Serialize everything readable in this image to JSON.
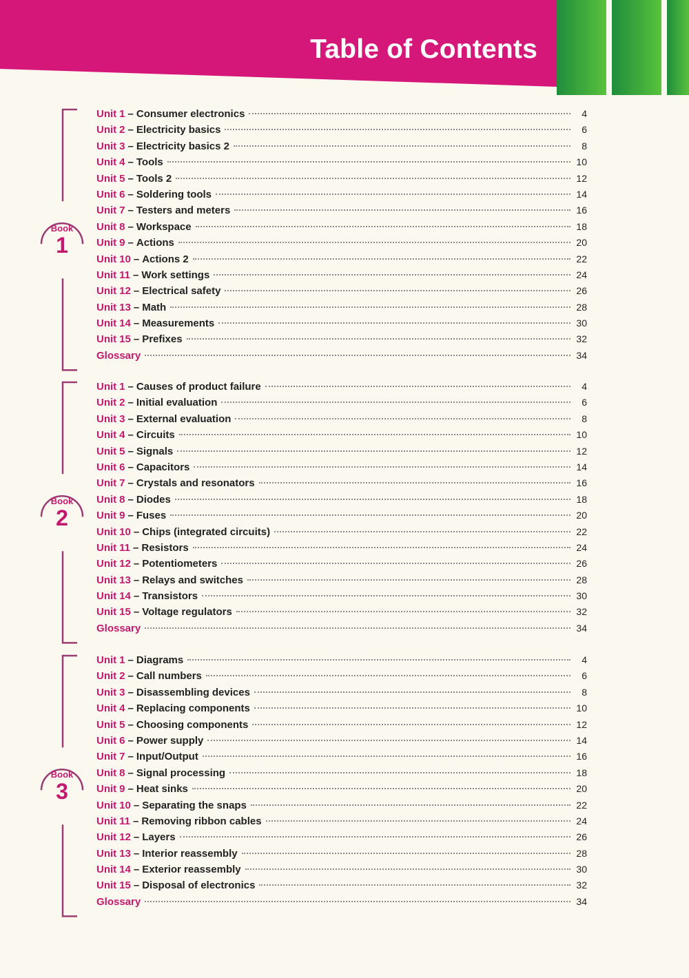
{
  "header": {
    "title": "Table of Contents",
    "colors": {
      "magenta": "#d6177a",
      "green_dark": "#1c8a3a",
      "green_light": "#5ac63c"
    }
  },
  "unit_prefix": "Unit",
  "separator": "–",
  "books": [
    {
      "label": "Book",
      "number": "1",
      "units": [
        {
          "num": "1",
          "title": "Consumer electronics",
          "page": "4"
        },
        {
          "num": "2",
          "title": "Electricity basics",
          "page": "6"
        },
        {
          "num": "3",
          "title": "Electricity basics 2",
          "page": "8"
        },
        {
          "num": "4",
          "title": "Tools",
          "page": "10"
        },
        {
          "num": "5",
          "title": "Tools 2",
          "page": "12"
        },
        {
          "num": "6",
          "title": "Soldering tools",
          "page": "14"
        },
        {
          "num": "7",
          "title": "Testers and meters",
          "page": "16"
        },
        {
          "num": "8",
          "title": "Workspace",
          "page": "18"
        },
        {
          "num": "9",
          "title": "Actions",
          "page": "20"
        },
        {
          "num": "10",
          "title": "Actions 2",
          "page": "22"
        },
        {
          "num": "11",
          "title": "Work settings",
          "page": "24"
        },
        {
          "num": "12",
          "title": "Electrical safety",
          "page": "26"
        },
        {
          "num": "13",
          "title": "Math",
          "page": "28"
        },
        {
          "num": "14",
          "title": "Measurements",
          "page": "30"
        },
        {
          "num": "15",
          "title": "Prefixes",
          "page": "32"
        }
      ],
      "glossary": {
        "label": "Glossary",
        "page": "34"
      }
    },
    {
      "label": "Book",
      "number": "2",
      "units": [
        {
          "num": "1",
          "title": "Causes of product failure",
          "page": "4"
        },
        {
          "num": "2",
          "title": "Initial evaluation",
          "page": "6"
        },
        {
          "num": "3",
          "title": "External evaluation",
          "page": "8"
        },
        {
          "num": "4",
          "title": "Circuits",
          "page": "10"
        },
        {
          "num": "5",
          "title": "Signals",
          "page": "12"
        },
        {
          "num": "6",
          "title": "Capacitors",
          "page": "14"
        },
        {
          "num": "7",
          "title": "Crystals and resonators",
          "page": "16"
        },
        {
          "num": "8",
          "title": "Diodes",
          "page": "18"
        },
        {
          "num": "9",
          "title": "Fuses",
          "page": "20"
        },
        {
          "num": "10",
          "title": "Chips (integrated circuits)",
          "page": "22"
        },
        {
          "num": "11",
          "title": "Resistors",
          "page": "24"
        },
        {
          "num": "12",
          "title": "Potentiometers",
          "page": "26"
        },
        {
          "num": "13",
          "title": "Relays and switches",
          "page": "28"
        },
        {
          "num": "14",
          "title": "Transistors",
          "page": "30"
        },
        {
          "num": "15",
          "title": "Voltage regulators",
          "page": "32"
        }
      ],
      "glossary": {
        "label": "Glossary",
        "page": "34"
      }
    },
    {
      "label": "Book",
      "number": "3",
      "units": [
        {
          "num": "1",
          "title": "Diagrams",
          "page": "4"
        },
        {
          "num": "2",
          "title": "Call numbers",
          "page": "6"
        },
        {
          "num": "3",
          "title": "Disassembling devices",
          "page": "8"
        },
        {
          "num": "4",
          "title": "Replacing components",
          "page": "10"
        },
        {
          "num": "5",
          "title": "Choosing components",
          "page": "12"
        },
        {
          "num": "6",
          "title": "Power supply",
          "page": "14"
        },
        {
          "num": "7",
          "title": "Input/Output",
          "page": "16"
        },
        {
          "num": "8",
          "title": "Signal processing",
          "page": "18"
        },
        {
          "num": "9",
          "title": "Heat sinks",
          "page": "20"
        },
        {
          "num": "10",
          "title": "Separating the snaps",
          "page": "22"
        },
        {
          "num": "11",
          "title": "Removing ribbon cables",
          "page": "24"
        },
        {
          "num": "12",
          "title": "Layers",
          "page": "26"
        },
        {
          "num": "13",
          "title": "Interior reassembly",
          "page": "28"
        },
        {
          "num": "14",
          "title": "Exterior reassembly",
          "page": "30"
        },
        {
          "num": "15",
          "title": "Disposal of electronics",
          "page": "32"
        }
      ],
      "glossary": {
        "label": "Glossary",
        "page": "34"
      }
    }
  ]
}
